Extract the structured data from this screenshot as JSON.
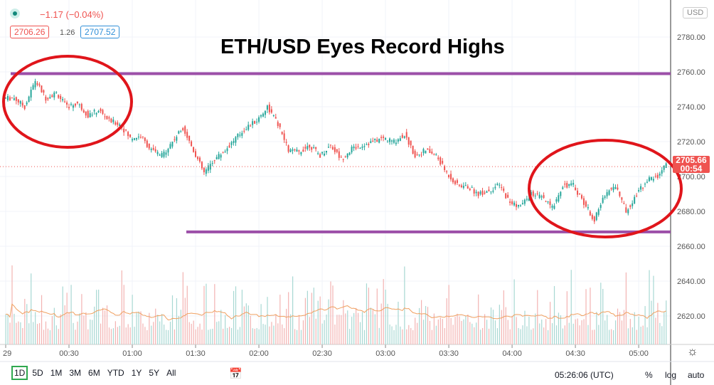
{
  "header": {
    "change": "−1.17 (−0.04%)",
    "bid": "2706.26",
    "spread": "1.26",
    "ask": "2707.52",
    "currency": "USD"
  },
  "title": "ETH/USD Eyes Record Highs",
  "price_label": {
    "price": "2705.66",
    "countdown": "00:54"
  },
  "bottom": {
    "ranges": [
      "1D",
      "5D",
      "1M",
      "3M",
      "6M",
      "YTD",
      "1Y",
      "5Y",
      "All"
    ],
    "time": "05:26:06 (UTC)",
    "pct": "%",
    "log": "log",
    "auto": "auto"
  },
  "colors": {
    "up": "#26a69a",
    "down": "#ef5350",
    "trendline": "#9c4fa8",
    "circle": "#e0151b",
    "ma": "#f0a060"
  },
  "chart_data": {
    "type": "candlestick",
    "title": "ETH/USD Eyes Record Highs",
    "interval_minutes": 5,
    "x_ticks": [
      "29",
      "00:30",
      "01:00",
      "01:30",
      "02:00",
      "02:30",
      "03:00",
      "03:30",
      "04:00",
      "04:30",
      "05:00"
    ],
    "y_ticks": [
      2620,
      2640,
      2660,
      2680,
      2700,
      2720,
      2740,
      2760,
      2780
    ],
    "y_tick_labels": [
      "2620.00",
      "2640.00",
      "2660.00",
      "2680.00",
      "2700.00",
      "2720.00",
      "2740.00",
      "2760.00",
      "2780.00"
    ],
    "ylim": [
      2606,
      2791
    ],
    "close": [
      2745,
      2740,
      2755,
      2745,
      2748,
      2740,
      2742,
      2735,
      2738,
      2732,
      2730,
      2722,
      2723,
      2715,
      2712,
      2720,
      2728,
      2715,
      2702,
      2710,
      2715,
      2722,
      2728,
      2732,
      2740,
      2730,
      2715,
      2714,
      2718,
      2712,
      2718,
      2710,
      2716,
      2718,
      2720,
      2722,
      2720,
      2724,
      2712,
      2715,
      2712,
      2702,
      2695,
      2694,
      2690,
      2692,
      2695,
      2685,
      2683,
      2690,
      2688,
      2682,
      2695,
      2695,
      2685,
      2675,
      2690,
      2695,
      2680,
      2690,
      2698,
      2700,
      2710,
      2705.66
    ],
    "resistance": 2759,
    "support": 2668.2,
    "last_price": 2705.66
  }
}
